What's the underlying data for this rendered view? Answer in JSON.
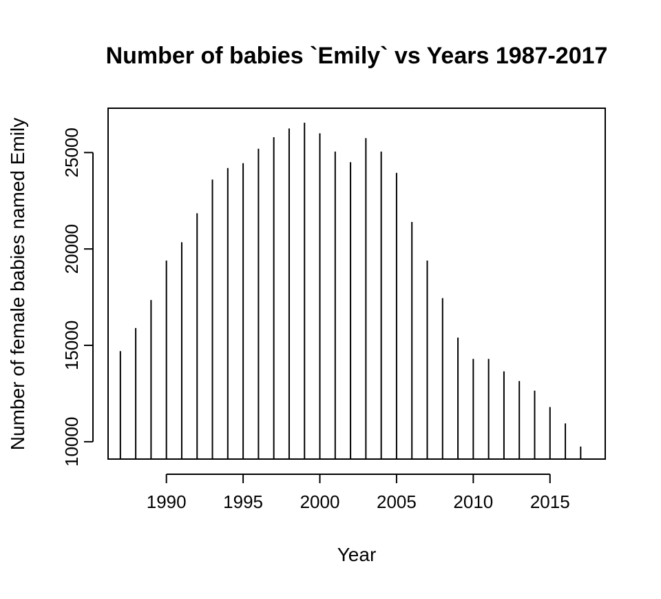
{
  "chart_data": {
    "type": "bar",
    "style": "histogram-spikes",
    "title": "Number of babies `Emily` vs Years 1987-2017",
    "xlabel": "Year",
    "ylabel": "Number of female babies named Emily",
    "x": [
      1987,
      1988,
      1989,
      1990,
      1991,
      1992,
      1993,
      1994,
      1995,
      1996,
      1997,
      1998,
      1999,
      2000,
      2001,
      2002,
      2003,
      2004,
      2005,
      2006,
      2007,
      2008,
      2009,
      2010,
      2011,
      2012,
      2013,
      2014,
      2015,
      2016,
      2017
    ],
    "values": [
      14700,
      15900,
      17350,
      19400,
      20350,
      21850,
      23600,
      24200,
      24450,
      25200,
      25800,
      26250,
      26550,
      26000,
      25050,
      24500,
      25750,
      25050,
      23950,
      21400,
      19400,
      17450,
      15400,
      14300,
      14300,
      13650,
      13150,
      12650,
      11800,
      10950,
      9750
    ],
    "xlim": [
      1986.2,
      2018.6
    ],
    "ylim": [
      9100,
      27300
    ],
    "baseline": 9100,
    "xticks": [
      1990,
      1995,
      2000,
      2005,
      2010,
      2015
    ],
    "yticks": [
      10000,
      15000,
      20000,
      25000
    ],
    "bar_color": "#000000",
    "grid": false,
    "legend": "none"
  }
}
